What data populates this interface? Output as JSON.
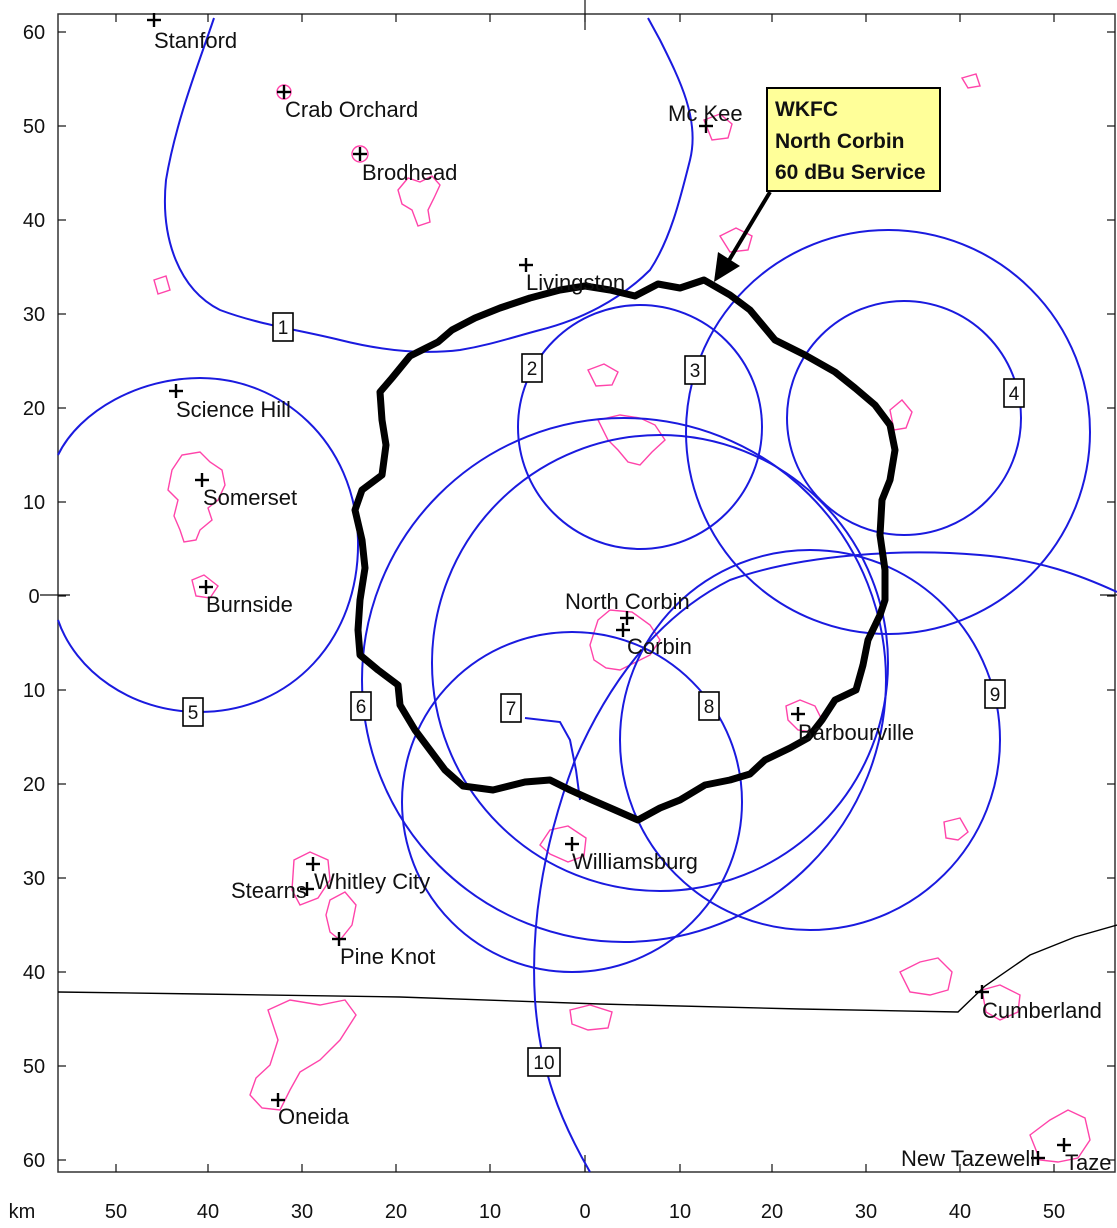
{
  "axis": {
    "unit_label": "km",
    "x_tick_labels": [
      "50",
      "40",
      "30",
      "20",
      "10",
      "0",
      "10",
      "20",
      "30",
      "40",
      "50"
    ],
    "y_tick_labels": [
      "60",
      "50",
      "40",
      "30",
      "20",
      "10",
      "0",
      "10",
      "20",
      "30",
      "40",
      "50",
      "60"
    ]
  },
  "callout": {
    "lines": [
      "WKFC",
      "North Corbin",
      "60 dBu Service"
    ],
    "fill": "#ffff99"
  },
  "contour_numbers": [
    "1",
    "2",
    "3",
    "4",
    "5",
    "6",
    "7",
    "8",
    "9",
    "10"
  ],
  "towns": [
    {
      "key": "stanford",
      "name": "Stanford"
    },
    {
      "key": "crab-orchard",
      "name": "Crab Orchard"
    },
    {
      "key": "brodhead",
      "name": "Brodhead"
    },
    {
      "key": "mckee",
      "name": "Mc Kee"
    },
    {
      "key": "livingston",
      "name": "Livingston"
    },
    {
      "key": "science-hill",
      "name": "Science Hill"
    },
    {
      "key": "somerset",
      "name": "Somerset"
    },
    {
      "key": "burnside",
      "name": "Burnside"
    },
    {
      "key": "north-corbin",
      "name": "North Corbin"
    },
    {
      "key": "corbin",
      "name": "Corbin"
    },
    {
      "key": "barbourville",
      "name": "Barbourville"
    },
    {
      "key": "williamsburg",
      "name": "Williamsburg"
    },
    {
      "key": "stearns",
      "name": "Stearns"
    },
    {
      "key": "whitley-city",
      "name": "Whitley City"
    },
    {
      "key": "pine-knot",
      "name": "Pine Knot"
    },
    {
      "key": "cumberland",
      "name": "Cumberland"
    },
    {
      "key": "oneida",
      "name": "Oneida"
    },
    {
      "key": "new-tazewell",
      "name": "New Tazewell"
    },
    {
      "key": "tazewell",
      "name": "Taze"
    }
  ],
  "colors": {
    "contour": "#1a1adf",
    "town_outline": "#ff44aa",
    "service_contour": "#000000",
    "state_line": "#000000"
  }
}
